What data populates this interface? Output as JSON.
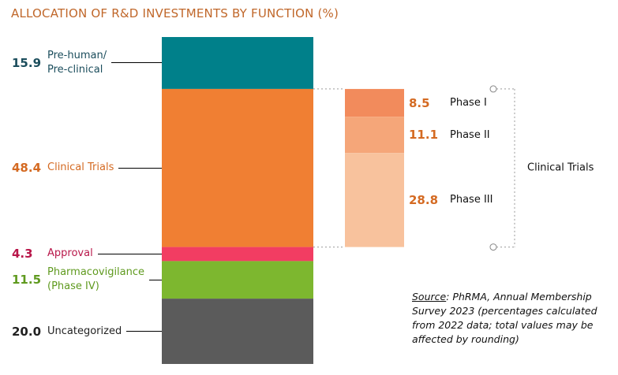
{
  "chart_data": {
    "type": "stacked-bar",
    "title": "ALLOCATION OF R&D INVESTMENTS BY FUNCTION (%)",
    "series": [
      {
        "name": "Pre-human/\nPre-clinical",
        "color": "#00808a",
        "label_color": "#1b4d5c",
        "values": [
          15.9
        ]
      },
      {
        "name": "Clinical Trials",
        "color": "#f07f33",
        "label_color": "#d46a22",
        "values": [
          48.4
        ]
      },
      {
        "name": "Approval",
        "color": "#f23d62",
        "label_color": "#b8174a",
        "values": [
          4.3
        ]
      },
      {
        "name": "Pharmacovigilance\n(Phase IV)",
        "color": "#7db72f",
        "label_color": "#5f9a1f",
        "values": [
          11.5
        ]
      },
      {
        "name": "Uncategorized",
        "color": "#5b5b5b",
        "label_color": "#222222",
        "values": [
          20.0
        ],
        "value_labels": [
          "20.0"
        ]
      }
    ],
    "breakdown": {
      "title": "Clinical Trials",
      "series": [
        {
          "name": "Phase I",
          "color": "#f28b5c",
          "values": [
            8.5
          ]
        },
        {
          "name": "Phase II",
          "color": "#f5a679",
          "values": [
            11.1
          ]
        },
        {
          "name": "Phase III",
          "color": "#f8c29d",
          "values": [
            28.8
          ]
        }
      ]
    },
    "source_label": "Source",
    "source_text": ": PhRMA, Annual Membership Survey 2023 (percentages calculated from 2022 data; total values may be affected by rounding)"
  }
}
